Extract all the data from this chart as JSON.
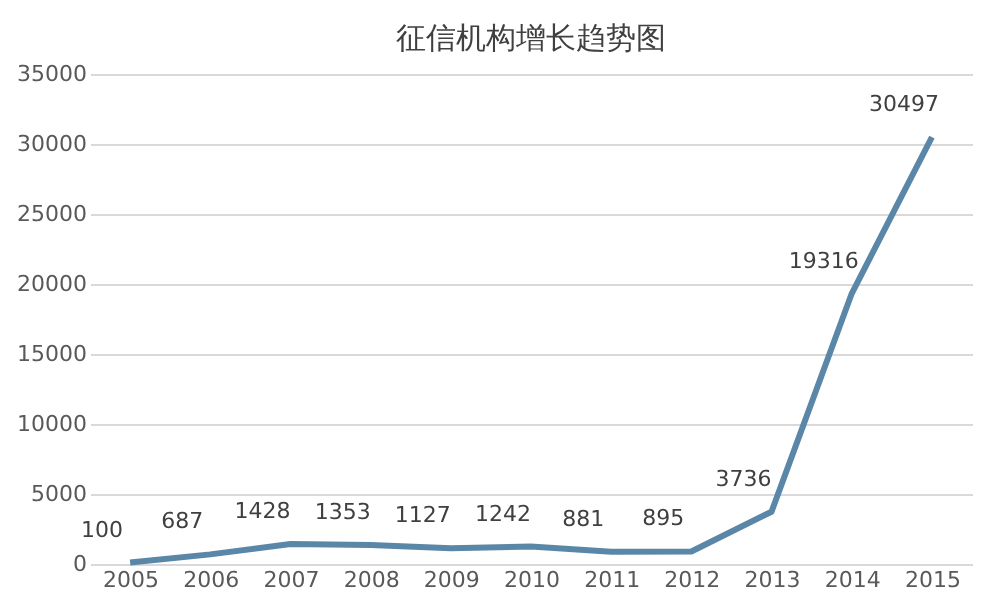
{
  "chart_data": {
    "type": "line",
    "title": "征信机构增长趋势图",
    "categories": [
      "2005",
      "2006",
      "2007",
      "2008",
      "2009",
      "2010",
      "2011",
      "2012",
      "2013",
      "2014",
      "2015"
    ],
    "series": [
      {
        "color": "#5a86a8",
        "values": [
          100,
          687,
          1428,
          1353,
          1127,
          1242,
          881,
          895,
          3736,
          19316,
          30497
        ]
      }
    ],
    "ylim": [
      0,
      35000
    ],
    "yticks": [
      0,
      5000,
      10000,
      15000,
      20000,
      25000,
      30000,
      35000
    ],
    "grid": "y",
    "data_labels": true,
    "marker": "none",
    "line_style": "solid"
  }
}
